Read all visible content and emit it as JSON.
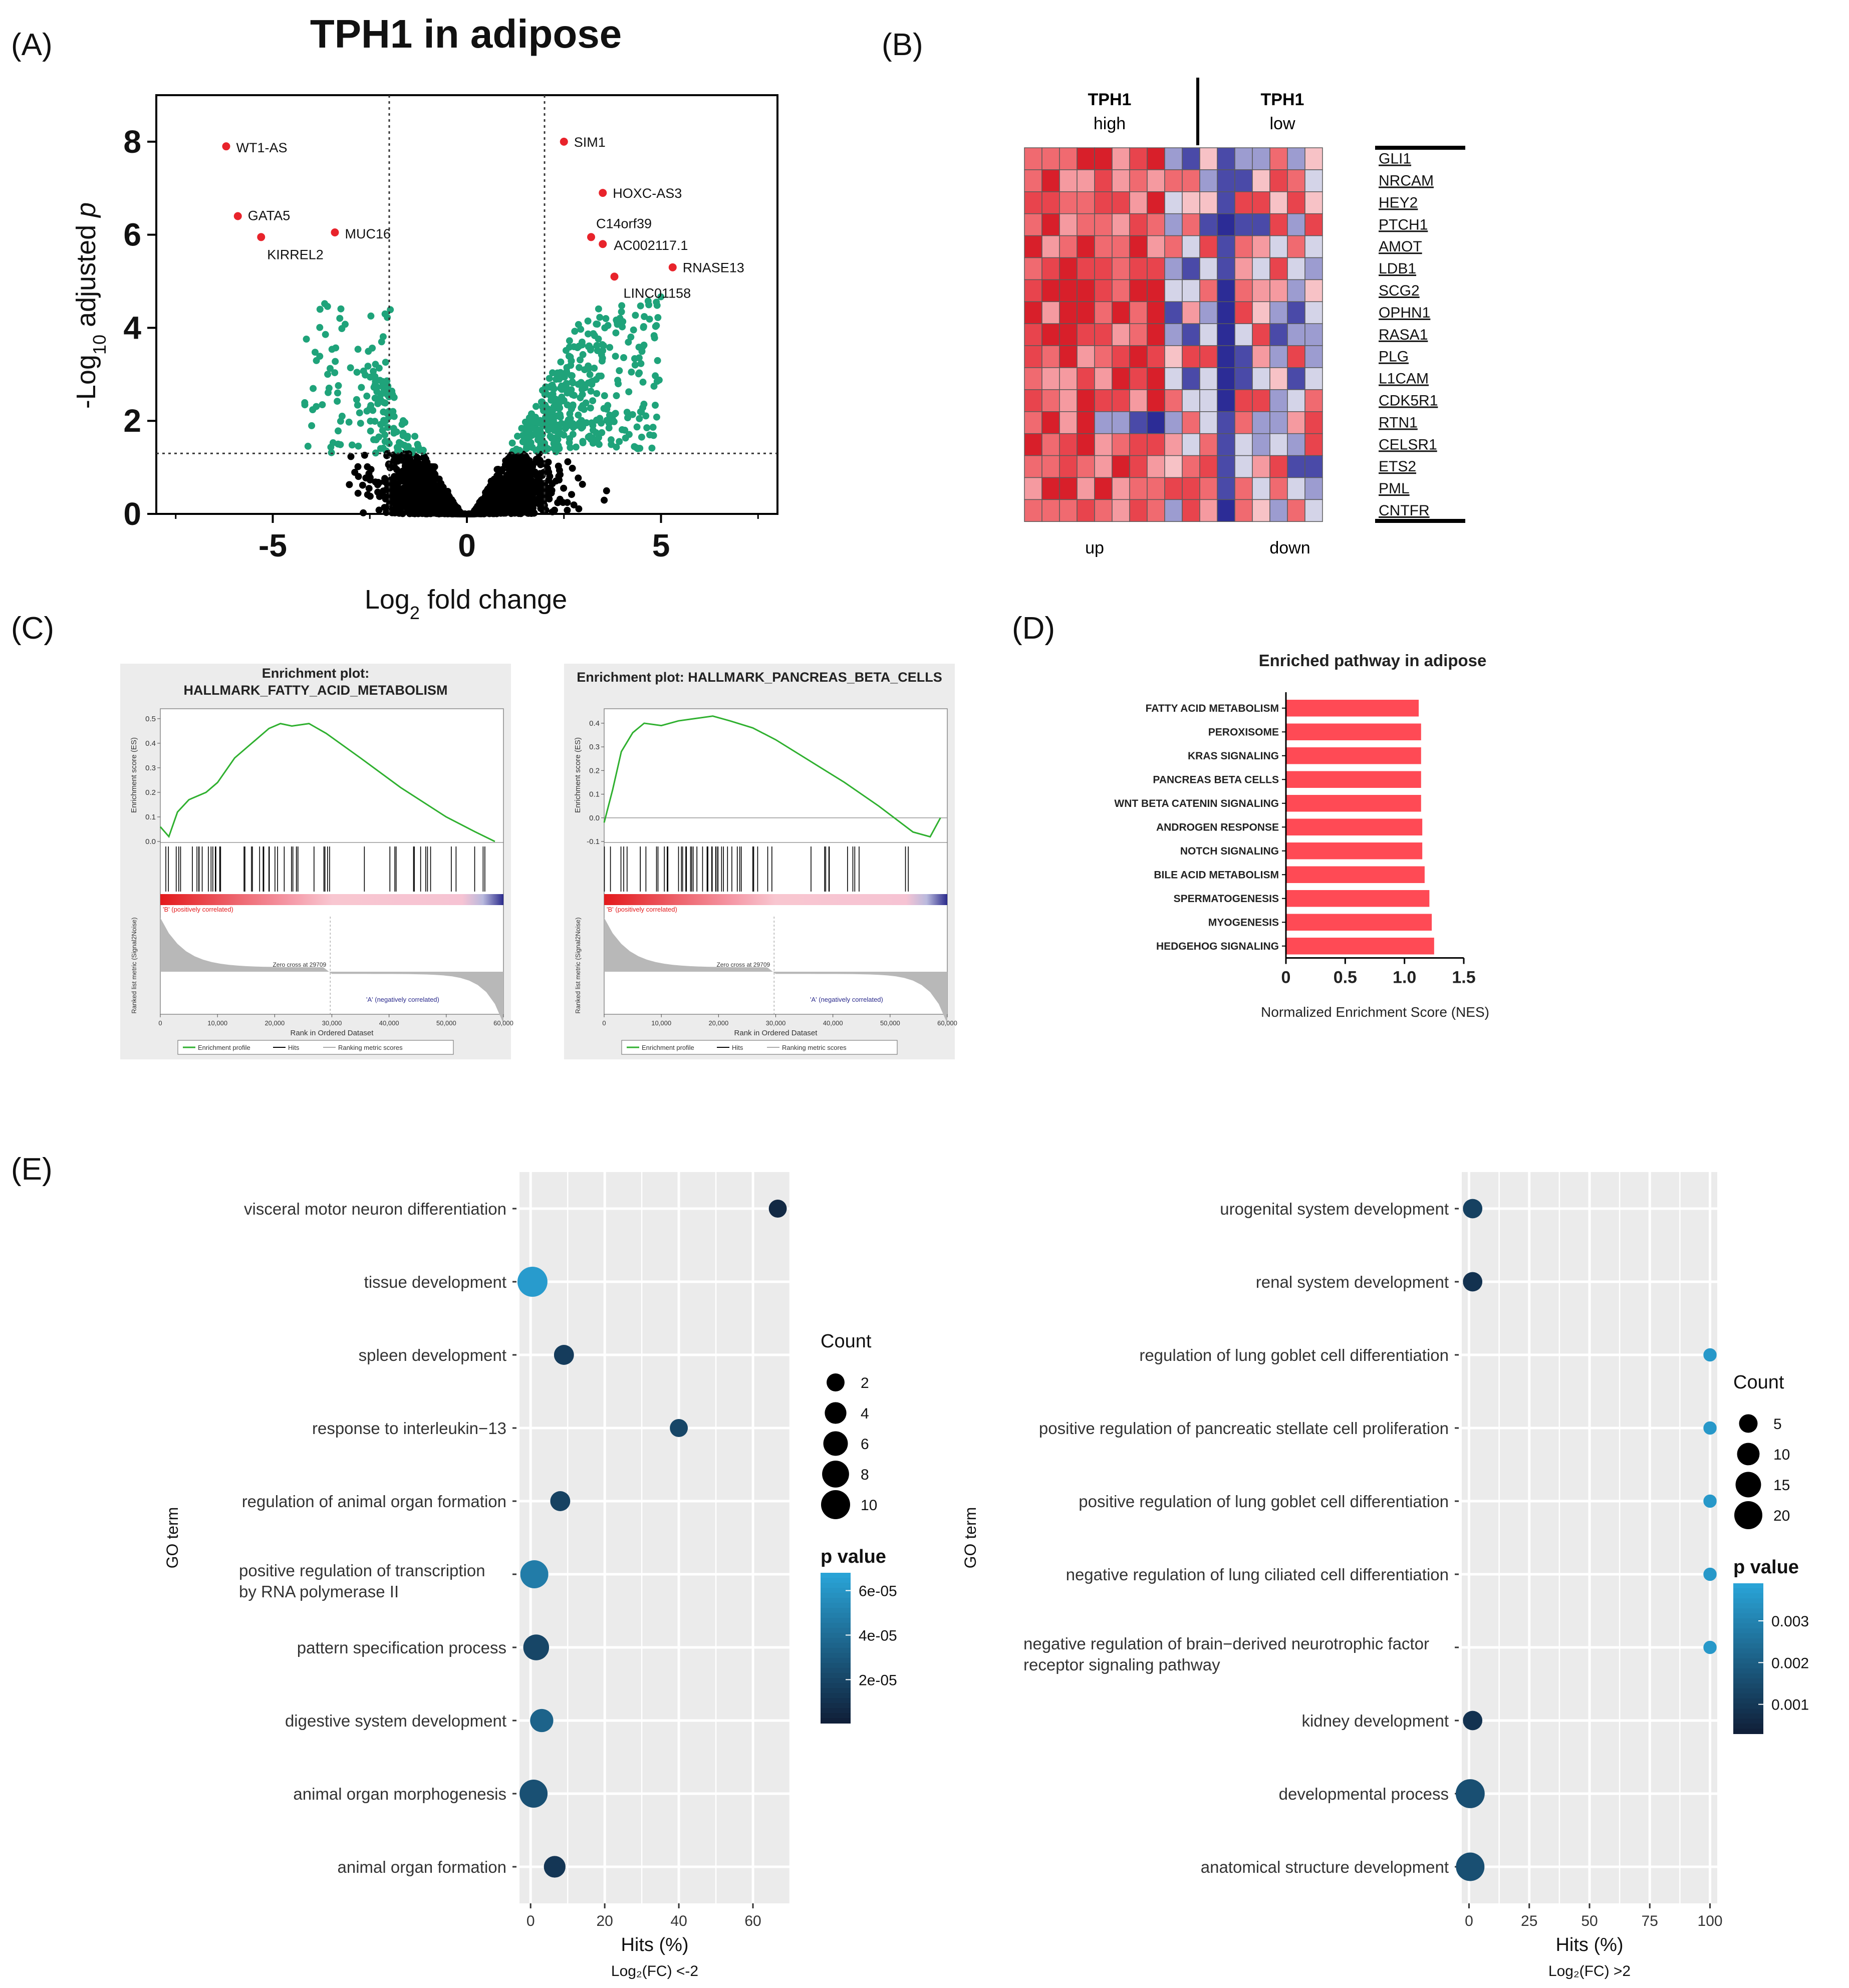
{
  "panels": {
    "A": "(A)",
    "B": "(B)",
    "C": "(C)",
    "D": "(D)",
    "E": "(E)"
  },
  "colors": {
    "sig": "#1fa37a",
    "ns": "#000000",
    "top": "#e8232b",
    "heat_red": "#d81f2a",
    "heat_blue": "#2c2c96",
    "bar": "#ff4a55",
    "go_light": "#29a3d6",
    "go_dark": "#10203a",
    "gsea_line": "#2fb02f"
  },
  "chart_data": [
    {
      "id": "volcano",
      "type": "scatter",
      "title": "TPH1 in adipose",
      "xlabel": "Log2 fold change",
      "ylabel": "-Log10 adjusted p",
      "xlim": [
        -8,
        8
      ],
      "ylim": [
        0,
        9
      ],
      "xticks": [
        -5,
        0,
        5
      ],
      "yticks": [
        0,
        2,
        4,
        6,
        8
      ],
      "thresholds": {
        "x": [
          -2,
          2
        ],
        "y": 1.3
      },
      "labeled_points": [
        {
          "label": "WT1-AS",
          "x": -6.2,
          "y": 7.9
        },
        {
          "label": "GATA5",
          "x": -5.9,
          "y": 6.4
        },
        {
          "label": "KIRREL2",
          "x": -5.3,
          "y": 5.95
        },
        {
          "label": "MUC16",
          "x": -3.4,
          "y": 6.05
        },
        {
          "label": "SIM1",
          "x": 2.5,
          "y": 8.0
        },
        {
          "label": "HOXC-AS3",
          "x": 3.5,
          "y": 6.9
        },
        {
          "label": "C14orf39",
          "x": 3.2,
          "y": 5.95
        },
        {
          "label": "AC002117.1",
          "x": 3.5,
          "y": 5.8
        },
        {
          "label": "RNASE13",
          "x": 5.3,
          "y": 5.3
        },
        {
          "label": "LINC01158",
          "x": 3.8,
          "y": 5.1
        }
      ]
    },
    {
      "id": "heatmap",
      "type": "heatmap",
      "group_labels": [
        [
          "TPH1",
          "high"
        ],
        [
          "TPH1",
          "low"
        ]
      ],
      "bottom_labels": [
        "up",
        "down"
      ],
      "genes": [
        "GLI1",
        "NRCAM",
        "HEY2",
        "PTCH1",
        "AMOT",
        "LDB1",
        "SCG2",
        "OPHN1",
        "RASA1",
        "PLG",
        "L1CAM",
        "CDK5R1",
        "RTN1",
        "CELSR1",
        "ETS2",
        "PML",
        "CNTFR"
      ],
      "columns": 17,
      "high_columns": 8
    },
    {
      "id": "gsea1",
      "type": "line",
      "title_lines": [
        "Enrichment plot:",
        "HALLMARK_FATTY_ACID_METABOLISM"
      ],
      "ylabel": "Enrichment score (ES)",
      "ylabel2": "Ranked list metric (Signal2Noise)",
      "xlabel": "Rank in Ordered Dataset",
      "yticks": [
        0.0,
        0.1,
        0.2,
        0.3,
        0.4,
        0.5
      ],
      "xticks": [
        0,
        10000,
        20000,
        30000,
        40000,
        50000,
        60000
      ],
      "xticklabels": [
        "0",
        "10,000",
        "20,000",
        "30,000",
        "40,000",
        "50,000",
        "60,000"
      ],
      "zero_cross": "Zero cross at 29709",
      "pos_label": "'B' (positively correlated)",
      "neg_label": "'A' (negatively correlated)",
      "legend": [
        "Enrichment profile",
        "Hits",
        "Ranking metric scores"
      ],
      "es_curve": [
        [
          0,
          0.06
        ],
        [
          1500,
          0.02
        ],
        [
          3000,
          0.12
        ],
        [
          5000,
          0.17
        ],
        [
          8000,
          0.2
        ],
        [
          10000,
          0.24
        ],
        [
          13000,
          0.34
        ],
        [
          16000,
          0.4
        ],
        [
          19000,
          0.46
        ],
        [
          21000,
          0.48
        ],
        [
          23000,
          0.47
        ],
        [
          26000,
          0.48
        ],
        [
          29000,
          0.44
        ],
        [
          35000,
          0.34
        ],
        [
          42000,
          0.22
        ],
        [
          50000,
          0.1
        ],
        [
          55000,
          0.04
        ],
        [
          58500,
          0.0
        ]
      ]
    },
    {
      "id": "gsea2",
      "type": "line",
      "title_lines": [
        "Enrichment plot: HALLMARK_PANCREAS_BETA_CELLS"
      ],
      "ylabel": "Enrichment score (ES)",
      "ylabel2": "Ranked list metric (Signal2Noise)",
      "xlabel": "Rank in Ordered Dataset",
      "yticks": [
        -0.1,
        0.0,
        0.1,
        0.2,
        0.3,
        0.4
      ],
      "xticks": [
        0,
        10000,
        20000,
        30000,
        40000,
        50000,
        60000
      ],
      "xticklabels": [
        "0",
        "10,000",
        "20,000",
        "30,000",
        "40,000",
        "50,000",
        "60,000"
      ],
      "zero_cross": "Zero cross at 29709",
      "pos_label": "'B' (positively correlated)",
      "neg_label": "'A' (negatively correlated)",
      "legend": [
        "Enrichment profile",
        "Hits",
        "Ranking metric scores"
      ],
      "es_curve": [
        [
          0,
          -0.02
        ],
        [
          1500,
          0.12
        ],
        [
          3000,
          0.28
        ],
        [
          5000,
          0.36
        ],
        [
          7000,
          0.4
        ],
        [
          10000,
          0.39
        ],
        [
          13000,
          0.41
        ],
        [
          16000,
          0.42
        ],
        [
          19000,
          0.43
        ],
        [
          22000,
          0.41
        ],
        [
          26000,
          0.38
        ],
        [
          30000,
          0.33
        ],
        [
          36000,
          0.24
        ],
        [
          42000,
          0.15
        ],
        [
          48000,
          0.05
        ],
        [
          54000,
          -0.06
        ],
        [
          57000,
          -0.08
        ],
        [
          58800,
          0.0
        ]
      ]
    },
    {
      "id": "nes",
      "type": "bar",
      "orientation": "horizontal",
      "title": "Enriched pathway in adipose",
      "xlabel": "Normalized Enrichment Score (NES)",
      "xlim": [
        0,
        1.5
      ],
      "xticks": [
        0,
        0.5,
        1.0,
        1.5
      ],
      "xticklabels": [
        "0",
        "0.5",
        "1.0",
        "1.5"
      ],
      "categories": [
        "FATTY ACID METABOLISM",
        "PEROXISOME",
        "KRAS SIGNALING",
        "PANCREAS BETA CELLS",
        "WNT BETA CATENIN SIGNALING",
        "ANDROGEN RESPONSE",
        "NOTCH SIGNALING",
        "BILE ACID METABOLISM",
        "SPERMATOGENESIS",
        "MYOGENESIS",
        "HEDGEHOG SIGNALING"
      ],
      "values": [
        1.12,
        1.14,
        1.14,
        1.14,
        1.14,
        1.15,
        1.15,
        1.17,
        1.21,
        1.23,
        1.25
      ]
    },
    {
      "id": "go_down",
      "type": "scatter",
      "ylabel": "GO term",
      "xlabel": "Hits (%)",
      "subtitle": "Log₂(FC) <-2",
      "xlim": [
        -3,
        70
      ],
      "xticks": [
        0,
        20,
        40,
        60
      ],
      "terms": [
        {
          "name": [
            "visceral motor neuron differentiation"
          ],
          "hits": 66.7,
          "count": 2,
          "p": 5e-06
        },
        {
          "name": [
            "tissue development"
          ],
          "hits": 0.5,
          "count": 11,
          "p": 6.4e-05
        },
        {
          "name": [
            "spleen development"
          ],
          "hits": 9,
          "count": 3,
          "p": 1.5e-05
        },
        {
          "name": [
            "response to interleukin−13"
          ],
          "hits": 40,
          "count": 2,
          "p": 2e-05
        },
        {
          "name": [
            "regulation of animal organ formation"
          ],
          "hits": 8,
          "count": 3,
          "p": 1.8e-05
        },
        {
          "name": [
            "positive regulation of transcription",
            "by RNA polymerase II"
          ],
          "hits": 1,
          "count": 9,
          "p": 4.8e-05
        },
        {
          "name": [
            "pattern specification process"
          ],
          "hits": 1.5,
          "count": 7,
          "p": 2e-05
        },
        {
          "name": [
            "digestive system development"
          ],
          "hits": 3,
          "count": 5,
          "p": 3.5e-05
        },
        {
          "name": [
            "animal organ morphogenesis"
          ],
          "hits": 0.8,
          "count": 9,
          "p": 2.5e-05
        },
        {
          "name": [
            "animal organ formation"
          ],
          "hits": 6.5,
          "count": 4,
          "p": 1.2e-05
        }
      ],
      "size_legend": {
        "title": "Count",
        "values": [
          2,
          4,
          6,
          8,
          10
        ]
      },
      "color_legend": {
        "title": "p value",
        "ticks": [
          "6e-05",
          "4e-05",
          "2e-05"
        ],
        "tick_values": [
          6e-05,
          4e-05,
          2e-05
        ],
        "min": 5e-07,
        "max": 6.8e-05
      }
    },
    {
      "id": "go_up",
      "type": "scatter",
      "ylabel": "GO term",
      "xlabel": "Hits (%)",
      "subtitle": "Log₂(FC) >2",
      "xlim": [
        -3,
        103
      ],
      "xticks": [
        0,
        25,
        50,
        75,
        100
      ],
      "terms": [
        {
          "name": [
            "urogenital system development"
          ],
          "hits": 1.5,
          "count": 6,
          "p": 0.0012
        },
        {
          "name": [
            "renal system development"
          ],
          "hits": 1.5,
          "count": 6,
          "p": 0.0008
        },
        {
          "name": [
            "regulation of lung goblet cell differentiation"
          ],
          "hits": 100,
          "count": 1,
          "p": 0.0036
        },
        {
          "name": [
            "positive regulation of pancreatic stellate cell proliferation"
          ],
          "hits": 100,
          "count": 1,
          "p": 0.0036
        },
        {
          "name": [
            "positive regulation of lung goblet cell differentiation"
          ],
          "hits": 100,
          "count": 1,
          "p": 0.0036
        },
        {
          "name": [
            "negative regulation of lung ciliated cell differentiation"
          ],
          "hits": 100,
          "count": 1,
          "p": 0.0036
        },
        {
          "name": [
            "negative regulation of brain−derived neurotrophic factor",
            "receptor signaling pathway"
          ],
          "hits": 100,
          "count": 1,
          "p": 0.0036
        },
        {
          "name": [
            "kidney development"
          ],
          "hits": 1.5,
          "count": 6,
          "p": 0.0008
        },
        {
          "name": [
            "developmental process"
          ],
          "hits": 0.5,
          "count": 22,
          "p": 0.0016
        },
        {
          "name": [
            "anatomical structure development"
          ],
          "hits": 0.5,
          "count": 21,
          "p": 0.0016
        }
      ],
      "size_legend": {
        "title": "Count",
        "values": [
          5,
          10,
          15,
          20
        ]
      },
      "color_legend": {
        "title": "p value",
        "ticks": [
          "0.003",
          "0.002",
          "0.001"
        ],
        "tick_values": [
          0.003,
          0.002,
          0.001
        ],
        "min": 0.0003,
        "max": 0.0039
      }
    }
  ]
}
